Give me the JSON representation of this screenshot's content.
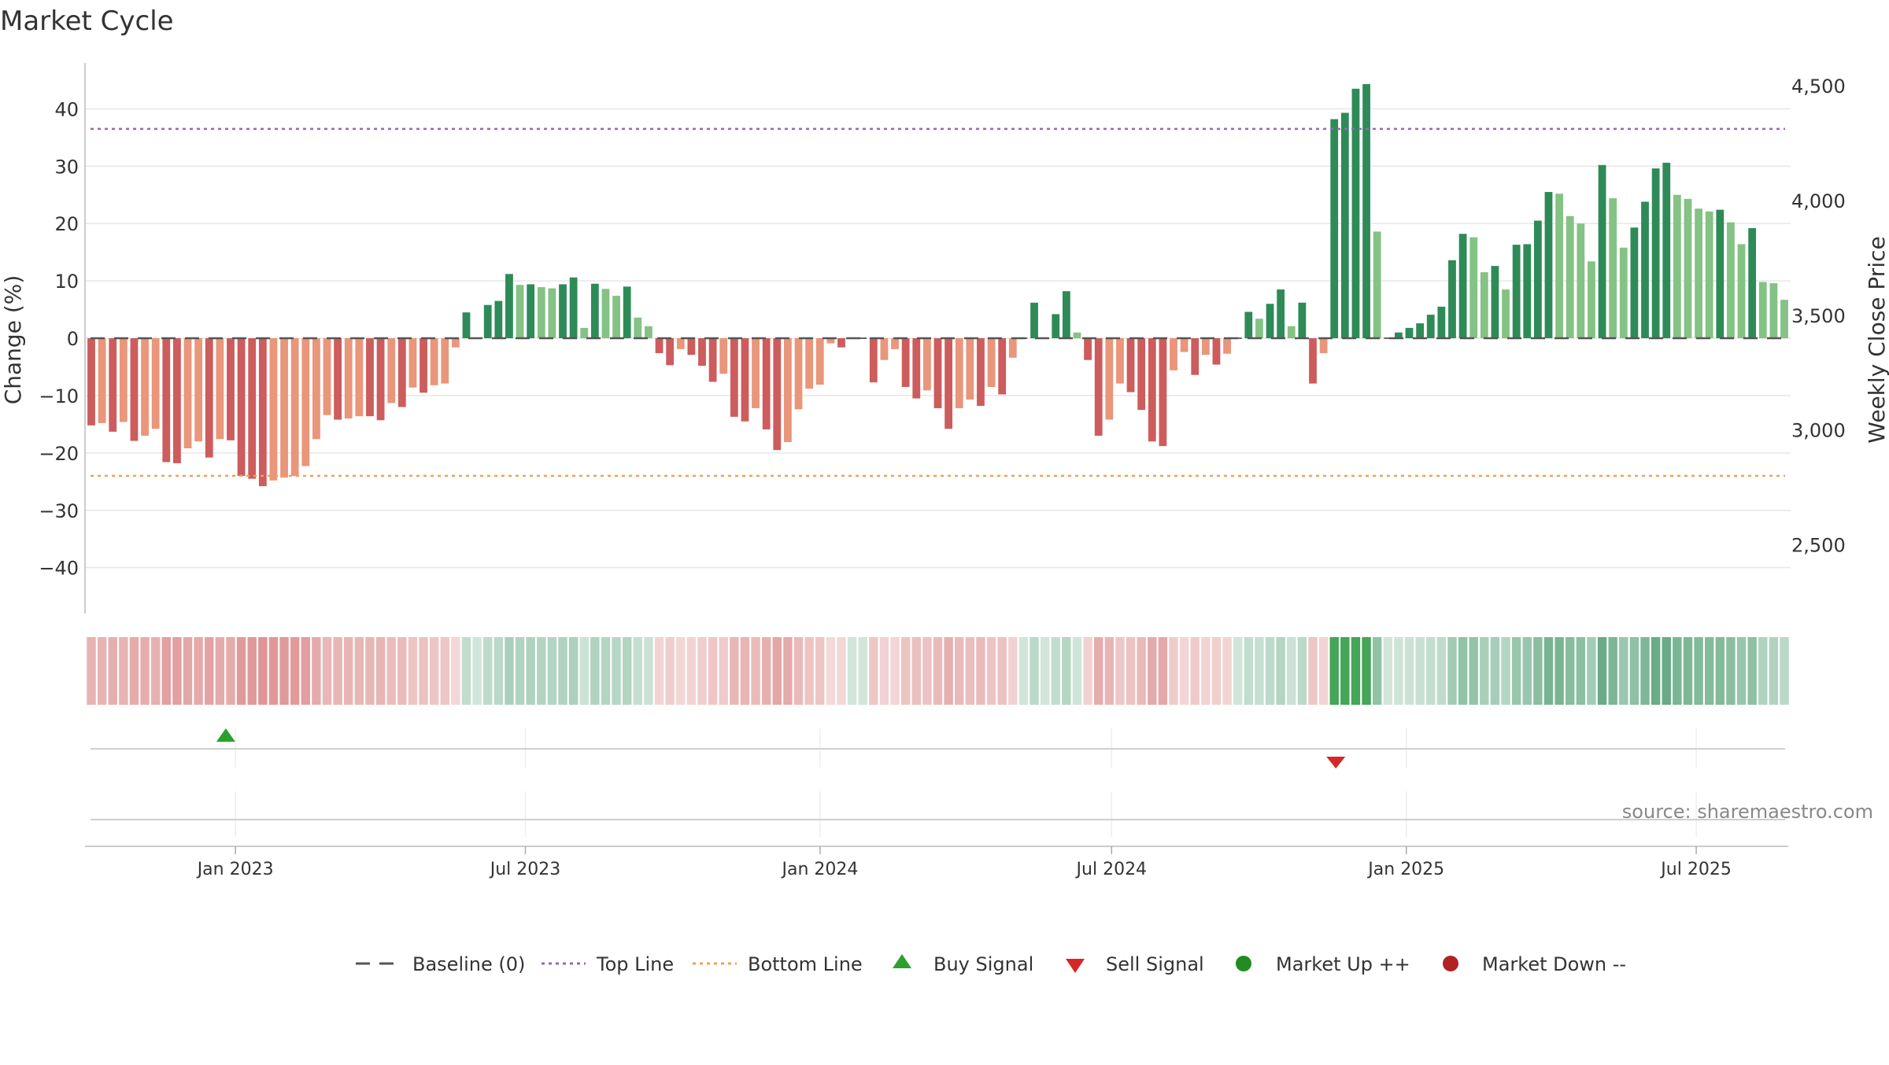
{
  "chart_data": {
    "type": "bar",
    "title": "Market Cycle",
    "ylabel": "Change (%)",
    "y2label": "Weekly Close Price",
    "ylim": [
      -48,
      48
    ],
    "y2lim": [
      2200,
      4600
    ],
    "yticks": [
      40,
      30,
      20,
      10,
      0,
      -10,
      -20,
      -30,
      -40
    ],
    "ytick_labels": [
      "40",
      "30",
      "20",
      "10",
      "0",
      "−10",
      "−20",
      "−30",
      "−40"
    ],
    "y2ticks": [
      4500,
      4000,
      3500,
      3000,
      2500
    ],
    "y2tick_labels": [
      "4,500",
      "4,000",
      "3,500",
      "3,000",
      "2,500"
    ],
    "x_start": "2022-10-03",
    "x_end": "2025-08-25",
    "xticks": [
      "2023-01-01",
      "2023-07-01",
      "2024-01-01",
      "2024-07-01",
      "2025-01-01",
      "2025-07-01"
    ],
    "xtick_labels": [
      "Jan 2023",
      "Jul 2023",
      "Jan 2024",
      "Jul 2024",
      "Jan 2025",
      "Jul 2025"
    ],
    "top_line": 36.5,
    "bottom_line": -24,
    "grid": true,
    "legend_position": "bottom-center",
    "colors": {
      "up_strong": "#2e8b57",
      "up_light": "#85c285",
      "down_strong": "#cd5c5c",
      "down_light": "#e9967a",
      "top_line": "#9467bd",
      "bottom_line": "#f0a05a",
      "baseline": "#555555",
      "buy": "#2ca02c",
      "sell": "#d62728",
      "market_up": "#228b22",
      "market_down": "#b22222"
    },
    "values": [
      -15.2,
      -14.8,
      -16.3,
      -14.6,
      -17.9,
      -17.0,
      -15.8,
      -21.6,
      -21.8,
      -19.2,
      -18.0,
      -20.8,
      -17.6,
      -17.8,
      -24.0,
      -24.5,
      -25.8,
      -24.8,
      -24.3,
      -24.0,
      -22.3,
      -17.6,
      -13.4,
      -14.2,
      -14.0,
      -13.6,
      -13.6,
      -14.3,
      -11.3,
      -12.0,
      -8.6,
      -9.5,
      -8.2,
      -7.9,
      -1.6,
      4.5,
      0.0,
      5.8,
      6.5,
      11.2,
      9.3,
      9.4,
      8.9,
      8.7,
      9.4,
      10.6,
      1.8,
      9.5,
      8.6,
      7.4,
      9.0,
      3.6,
      2.1,
      -2.6,
      -4.7,
      -1.9,
      -2.9,
      -4.8,
      -7.6,
      -6.2,
      -13.7,
      -14.5,
      -12.2,
      -15.9,
      -19.5,
      -18.1,
      -12.4,
      -8.8,
      -8.1,
      -0.9,
      -1.6,
      0.0,
      0.0,
      -7.7,
      -3.8,
      -1.9,
      -8.5,
      -10.5,
      -9.1,
      -12.2,
      -15.8,
      -12.2,
      -10.7,
      -11.8,
      -8.5,
      -9.8,
      -3.4,
      0.0,
      6.2,
      0.0,
      4.2,
      8.2,
      1.0,
      -3.8,
      -17.0,
      -14.2,
      -7.9,
      -9.4,
      -12.5,
      -18.0,
      -18.8,
      -5.6,
      -2.4,
      -6.4,
      -2.9,
      -4.6,
      -2.7,
      0.0,
      4.6,
      3.4,
      6.0,
      8.5,
      2.1,
      6.2,
      -7.9,
      -2.6,
      38.2,
      39.3,
      43.5,
      44.3,
      18.6,
      0.0,
      1.0,
      1.8,
      2.6,
      4.1,
      5.5,
      13.6,
      18.2,
      17.6,
      11.5,
      12.6,
      8.5,
      16.3,
      16.4,
      20.5,
      25.5,
      25.2,
      21.3,
      20.0,
      13.4,
      30.2,
      24.4,
      15.8,
      19.3,
      23.8,
      29.6,
      30.6,
      25.0,
      24.3,
      22.6,
      22.1,
      22.4,
      20.2,
      16.4,
      19.2,
      9.8,
      9.6,
      6.7
    ],
    "buy_signals": [
      "2022-12-26"
    ],
    "sell_signals": [
      "2024-11-18"
    ]
  },
  "legend": {
    "baseline": "Baseline (0)",
    "top": "Top Line",
    "bottom": "Bottom Line",
    "buy": "Buy Signal",
    "sell": "Sell Signal",
    "market_up": "Market Up ++",
    "market_down": "Market Down --"
  },
  "source_text": "source: sharemaestro.com"
}
